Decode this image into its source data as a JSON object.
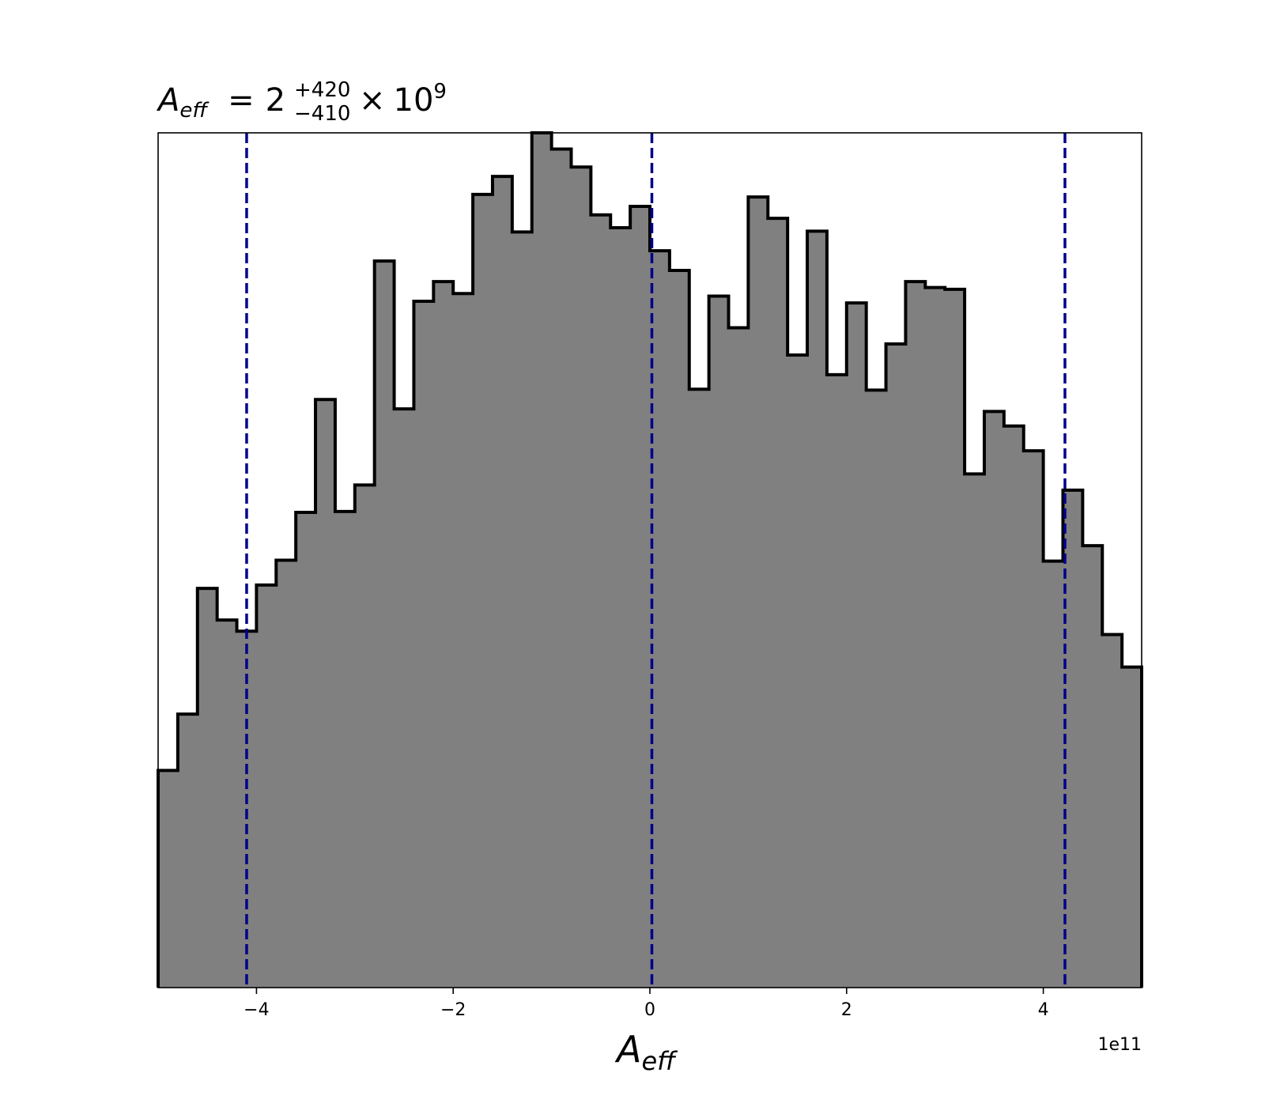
{
  "chart_data": {
    "type": "histogram",
    "title": {
      "symbol": "A",
      "symbol_sub": "eff",
      "equals": "=",
      "mantissa": "2",
      "upper": "+420",
      "lower": "−410",
      "times": "×",
      "base": "10",
      "exponent": "9"
    },
    "xlabel": {
      "symbol": "A",
      "sub": "eff"
    },
    "offset_label": "1e11",
    "x_scale": 100000000000.0,
    "xlim": [
      -5.0,
      5.0
    ],
    "ylim": [
      0,
      1
    ],
    "y_ticks_shown": false,
    "grid": false,
    "x_ticks": [
      {
        "value": -4,
        "label": "−4"
      },
      {
        "value": -2,
        "label": "−2"
      },
      {
        "value": 0,
        "label": "0"
      },
      {
        "value": 2,
        "label": "2"
      },
      {
        "value": 4,
        "label": "4"
      }
    ],
    "bin_edges": [
      -5.0,
      -4.8,
      -4.6,
      -4.4,
      -4.2,
      -4.0,
      -3.8,
      -3.6,
      -3.4,
      -3.2,
      -3.0,
      -2.8,
      -2.6,
      -2.4,
      -2.2,
      -2.0,
      -1.8,
      -1.6,
      -1.4,
      -1.2,
      -1.0,
      -0.8,
      -0.6,
      -0.4,
      -0.2,
      0.0,
      0.2,
      0.4,
      0.6,
      0.8,
      1.0,
      1.2,
      1.4,
      1.6,
      1.8,
      2.0,
      2.2,
      2.4,
      2.6,
      2.8,
      3.0,
      3.2,
      3.4,
      3.6,
      3.8,
      4.0,
      4.2,
      4.4,
      4.6,
      4.8,
      5.0
    ],
    "counts": [
      0.254,
      0.32,
      0.467,
      0.43,
      0.417,
      0.471,
      0.5,
      0.556,
      0.688,
      0.557,
      0.588,
      0.85,
      0.677,
      0.803,
      0.826,
      0.812,
      0.928,
      0.949,
      0.884,
      1.0,
      0.981,
      0.96,
      0.904,
      0.889,
      0.914,
      0.862,
      0.839,
      0.7,
      0.809,
      0.772,
      0.925,
      0.9,
      0.74,
      0.885,
      0.717,
      0.801,
      0.699,
      0.753,
      0.826,
      0.819,
      0.817,
      0.601,
      0.674,
      0.657,
      0.628,
      0.499,
      0.582,
      0.517,
      0.413,
      0.375
    ],
    "fill_color": "#808080",
    "edge_color": "#000000",
    "quantile_lines": [
      {
        "x": -4.1,
        "label": "lower"
      },
      {
        "x": 0.02,
        "label": "median"
      },
      {
        "x": 4.22,
        "label": "upper"
      }
    ],
    "quantile_color": "#00008b"
  }
}
